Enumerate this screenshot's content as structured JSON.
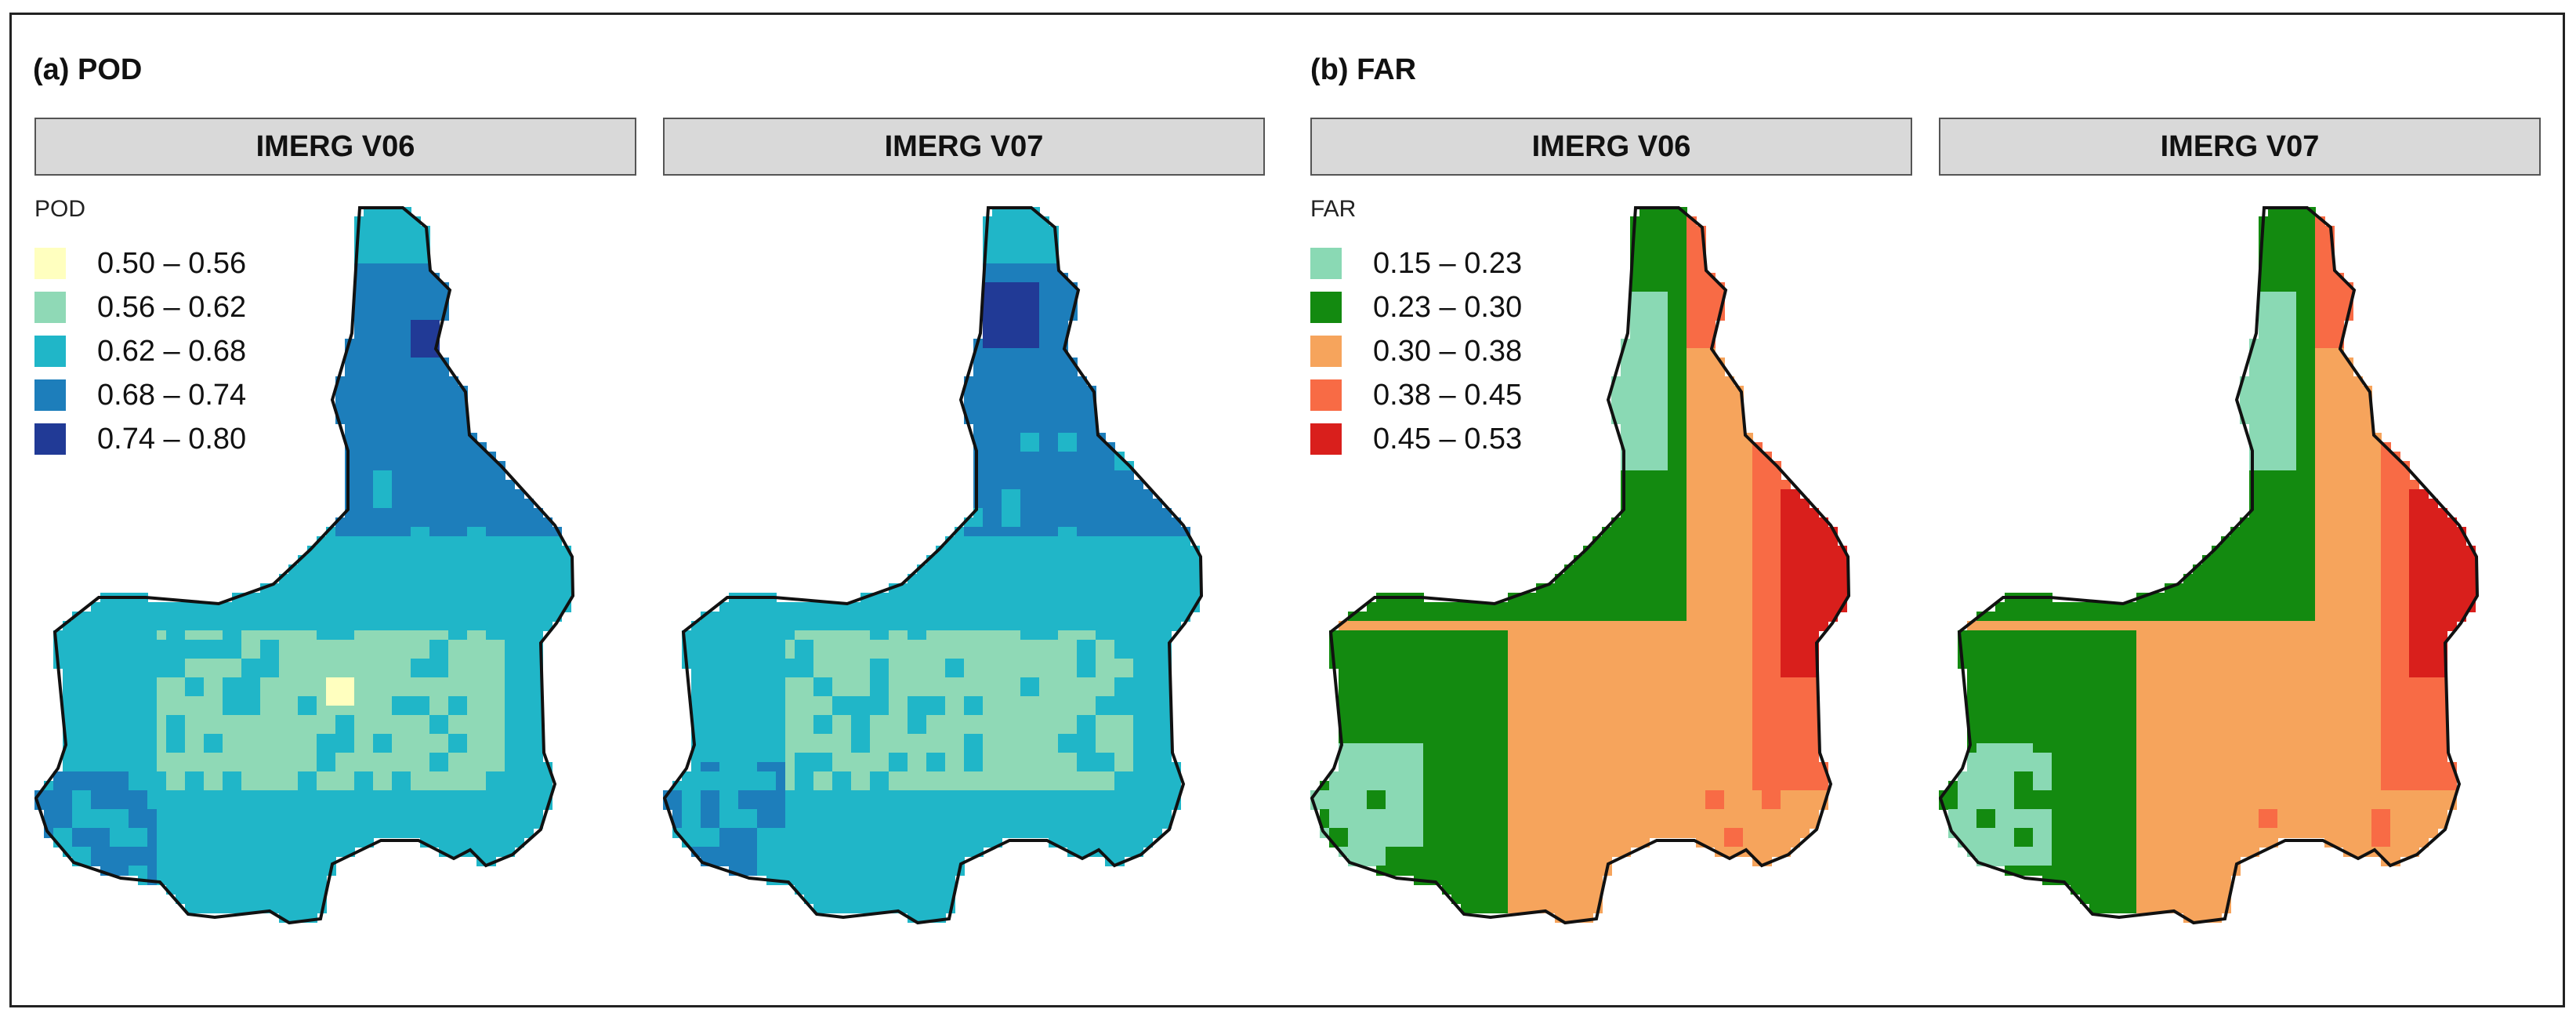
{
  "panels": {
    "a": {
      "title": "(a) POD",
      "strip_left": "IMERG V06",
      "strip_right": "IMERG V07",
      "legend_title": "POD",
      "legend": [
        {
          "label": "0.50 – 0.56",
          "color": "#ffffbf"
        },
        {
          "label": "0.56 – 0.62",
          "color": "#8fd9b6"
        },
        {
          "label": "0.62 – 0.68",
          "color": "#20b6c8"
        },
        {
          "label": "0.68 – 0.74",
          "color": "#1d7ebb"
        },
        {
          "label": "0.74 – 0.80",
          "color": "#213a96"
        }
      ]
    },
    "b": {
      "title": "(b) FAR",
      "strip_left": "IMERG V06",
      "strip_right": "IMERG V07",
      "legend_title": "FAR",
      "legend": [
        {
          "label": "0.15 – 0.23",
          "color": "#8ad9b4"
        },
        {
          "label": "0.23 – 0.30",
          "color": "#138a10"
        },
        {
          "label": "0.30 – 0.38",
          "color": "#f6a45c"
        },
        {
          "label": "0.38 – 0.45",
          "color": "#f86b45"
        },
        {
          "label": "0.45 – 0.53",
          "color": "#d91f1c"
        }
      ]
    }
  }
}
